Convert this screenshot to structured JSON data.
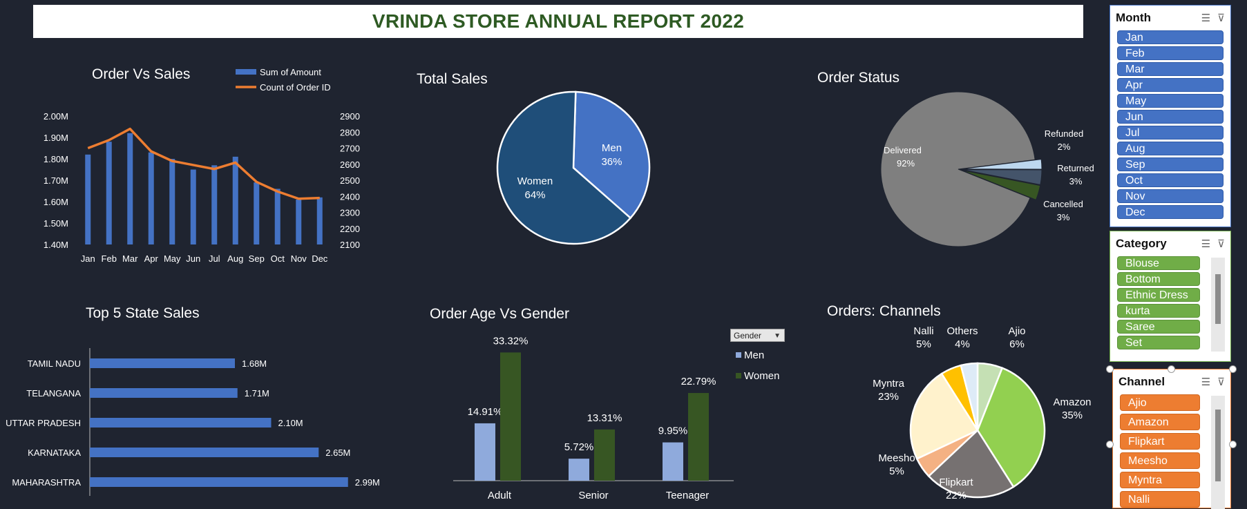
{
  "report_title": "VRINDA STORE ANNUAL REPORT 2022",
  "charts": {
    "order_vs_sales": {
      "title": "Order Vs Sales",
      "legend": [
        "Sum of Amount",
        "Count of Order ID"
      ],
      "left_ticks": [
        "2.00M",
        "1.90M",
        "1.80M",
        "1.70M",
        "1.60M",
        "1.50M",
        "1.40M"
      ],
      "right_ticks": [
        "2900",
        "2800",
        "2700",
        "2600",
        "2500",
        "2400",
        "2300",
        "2200",
        "2100"
      ]
    },
    "total_sales": {
      "title": "Total Sales"
    },
    "order_status": {
      "title": "Order Status"
    },
    "top5_states": {
      "title": "Top 5 State Sales"
    },
    "age_gender": {
      "title": "Order Age Vs Gender",
      "filter_label": "Gender"
    },
    "channels": {
      "title": "Orders: Channels"
    }
  },
  "chart_data": [
    {
      "type": "bar",
      "title": "Order Vs Sales",
      "categories": [
        "Jan",
        "Feb",
        "Mar",
        "Apr",
        "May",
        "Jun",
        "Jul",
        "Aug",
        "Sep",
        "Oct",
        "Nov",
        "Dec"
      ],
      "series": [
        {
          "name": "Sum of Amount",
          "axis": "left",
          "values": [
            1.82,
            1.88,
            1.92,
            1.83,
            1.8,
            1.75,
            1.77,
            1.81,
            1.69,
            1.66,
            1.61,
            1.62
          ]
        },
        {
          "name": "Count of Order ID",
          "type": "line",
          "axis": "right",
          "values": [
            2700,
            2750,
            2820,
            2680,
            2620,
            2595,
            2570,
            2610,
            2490,
            2430,
            2385,
            2390
          ]
        }
      ],
      "ylim_left": [
        1.4,
        2.0
      ],
      "ylim_right": [
        2100,
        2900
      ],
      "legend_position": "top"
    },
    {
      "type": "pie",
      "title": "Total Sales",
      "labels": [
        "Men",
        "Women"
      ],
      "values": [
        36,
        64
      ],
      "colors": [
        "#4472c4",
        "#1f4e79"
      ]
    },
    {
      "type": "pie",
      "title": "Order Status",
      "labels": [
        "Delivered",
        "Refunded",
        "Returned",
        "Cancelled"
      ],
      "values": [
        92,
        2,
        3,
        3
      ],
      "colors": [
        "#7f7f7f",
        "#bdd7ee",
        "#44546a",
        "#375623"
      ]
    },
    {
      "type": "bar",
      "orientation": "horizontal",
      "title": "Top 5 State Sales",
      "categories": [
        "TAMIL NADU",
        "TELANGANA",
        "UTTAR PRADESH",
        "KARNATAKA",
        "MAHARASHTRA"
      ],
      "values": [
        1.68,
        1.71,
        2.1,
        2.65,
        2.99
      ],
      "data_labels": [
        "1.68M",
        "1.71M",
        "2.10M",
        "2.65M",
        "2.99M"
      ]
    },
    {
      "type": "bar",
      "title": "Order Age Vs Gender",
      "categories": [
        "Adult",
        "Senior",
        "Teenager"
      ],
      "series": [
        {
          "name": "Men",
          "values": [
            14.91,
            5.72,
            9.95
          ],
          "color": "#8faadc"
        },
        {
          "name": "Women",
          "values": [
            33.32,
            13.31,
            22.79
          ],
          "color": "#375623"
        }
      ],
      "legend_position": "right"
    },
    {
      "type": "pie",
      "title": "Orders: Channels",
      "labels": [
        "Ajio",
        "Amazon",
        "Flipkart",
        "Meesho",
        "Myntra",
        "Nalli",
        "Others"
      ],
      "values": [
        6,
        35,
        22,
        5,
        23,
        5,
        4
      ],
      "colors": [
        "#c5e0b4",
        "#92d050",
        "#767171",
        "#f4b183",
        "#fff2cc",
        "#ffc000",
        "#deebf7"
      ]
    }
  ],
  "slicers": {
    "month": {
      "title": "Month",
      "items": [
        "Jan",
        "Feb",
        "Mar",
        "Apr",
        "May",
        "Jun",
        "Jul",
        "Aug",
        "Sep",
        "Oct",
        "Nov",
        "Dec"
      ]
    },
    "category": {
      "title": "Category",
      "items": [
        "Blouse",
        "Bottom",
        "Ethnic Dress",
        "kurta",
        "Saree",
        "Set"
      ]
    },
    "channel": {
      "title": "Channel",
      "items": [
        "Ajio",
        "Amazon",
        "Flipkart",
        "Meesho",
        "Myntra",
        "Nalli"
      ]
    }
  },
  "icons": {
    "multiselect": "multiselect-icon",
    "clear_filter": "clear-filter-icon"
  },
  "colors": {
    "background": "#1f2430",
    "title": "#2e5a23",
    "bar": "#4472c4",
    "line": "#ed7d31"
  }
}
